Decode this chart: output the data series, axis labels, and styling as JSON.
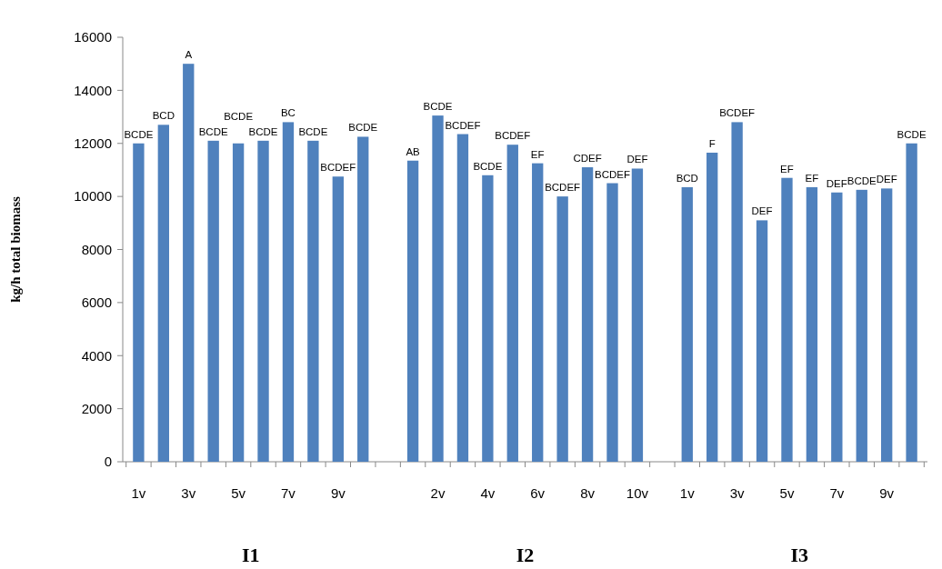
{
  "chart_data": {
    "type": "bar",
    "ylabel": "kg/h total biomass",
    "categories": [
      "1v",
      null,
      "3v",
      null,
      "5v",
      null,
      "7v",
      null,
      "9v",
      null,
      null,
      null,
      "2v",
      null,
      "4v",
      null,
      "6v",
      null,
      "8v",
      null,
      "10v",
      null,
      "1v",
      null,
      "3v",
      null,
      "5v",
      null,
      "7v",
      null,
      "9v",
      null
    ],
    "values": [
      12000,
      12700,
      15000,
      12100,
      12000,
      12100,
      12800,
      12100,
      10750,
      12250,
      null,
      11350,
      13050,
      12350,
      10800,
      11950,
      11250,
      10000,
      11100,
      10500,
      11050,
      null,
      10350,
      11650,
      12800,
      9100,
      10700,
      10350,
      10150,
      10250,
      10300,
      12000
    ],
    "value_labels": [
      "BCDE",
      "BCD",
      "A",
      "BCDE",
      "BCDE",
      "BCDE",
      "BC",
      "BCDE",
      "BCDEF",
      "BCDE",
      null,
      "AB",
      "BCDE",
      "BCDEF",
      "BCDE",
      "BCDEF",
      "EF",
      "BCDEF",
      "CDEF",
      "BCDEF",
      "DEF",
      null,
      "BCD",
      "F",
      "BCDEF",
      "DEF",
      "EF",
      "EF",
      "DEF",
      "BCDE",
      "DEF",
      "BCDE"
    ],
    "color": "#4f81bd",
    "ylim": [
      0,
      16000
    ],
    "yticks": [
      0,
      2000,
      4000,
      6000,
      8000,
      10000,
      12000,
      14000,
      16000
    ],
    "annotations": [
      "I1",
      "I2",
      "I3"
    ],
    "grid": false
  }
}
